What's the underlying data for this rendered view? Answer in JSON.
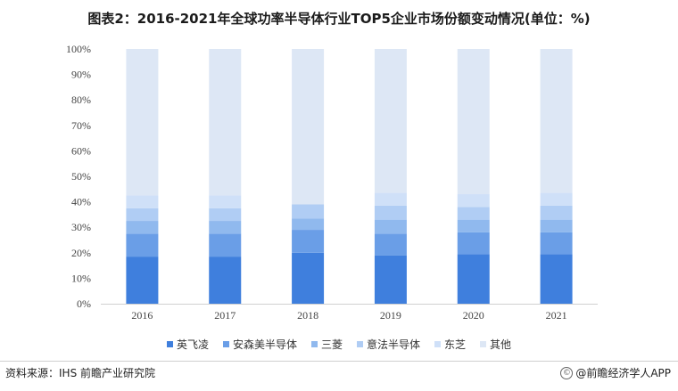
{
  "title": "图表2：2016-2021年全球功率半导体行业TOP5企业市场份额变动情况(单位：%)",
  "source": "资料来源：IHS 前瞻产业研究院",
  "credit": "@前瞻经济学人APP",
  "colors": {
    "axis": "#d0d0d0",
    "tick_text": "#444444"
  },
  "chart_data": {
    "type": "bar",
    "stacked": true,
    "categories": [
      "2016",
      "2017",
      "2018",
      "2019",
      "2020",
      "2021"
    ],
    "series": [
      {
        "name": "英飞凌",
        "color": "#3f7fdd",
        "values": [
          18.5,
          18.5,
          20,
          19,
          19.5,
          19.5
        ]
      },
      {
        "name": "安森美半导体",
        "color": "#6a9ee7",
        "values": [
          9,
          9,
          9,
          8.5,
          8.5,
          8.5
        ]
      },
      {
        "name": "三菱",
        "color": "#90b9ee",
        "values": [
          5,
          5,
          4.5,
          5.5,
          5,
          5
        ]
      },
      {
        "name": "意法半导体",
        "color": "#b0cdf4",
        "values": [
          5,
          5,
          5.5,
          5.5,
          5,
          5.5
        ]
      },
      {
        "name": "东芝",
        "color": "#cfe0f8",
        "values": [
          5,
          5,
          0,
          5,
          5,
          5
        ]
      },
      {
        "name": "其他",
        "color": "#dde7f5",
        "values": [
          57.5,
          57.5,
          61,
          56.5,
          57,
          56.5
        ]
      }
    ],
    "ylim": [
      0,
      100
    ],
    "yticks": [
      "0%",
      "10%",
      "20%",
      "30%",
      "40%",
      "50%",
      "60%",
      "70%",
      "80%",
      "90%",
      "100%"
    ],
    "xlabel": "",
    "ylabel": "",
    "legend_position": "bottom",
    "grid": false
  }
}
